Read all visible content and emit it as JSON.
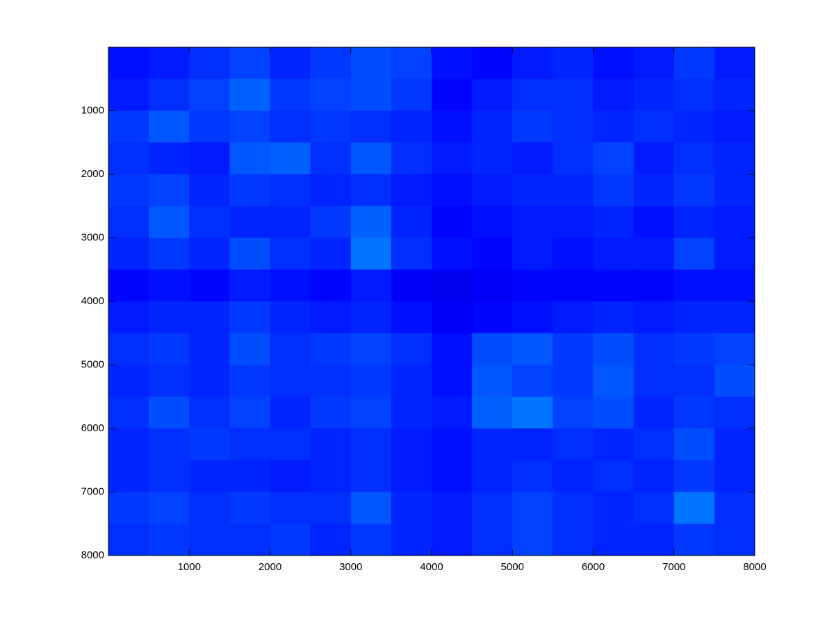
{
  "chart_data": {
    "type": "heatmap",
    "colormap": "jet",
    "clim": [
      0,
      1
    ],
    "xlim": [
      0,
      8000
    ],
    "ylim": [
      0,
      8000
    ],
    "y_reversed": true,
    "xticks": [
      1000,
      2000,
      3000,
      4000,
      5000,
      6000,
      7000,
      8000
    ],
    "yticks": [
      1000,
      2000,
      3000,
      4000,
      5000,
      6000,
      7000,
      8000
    ],
    "values": [
      [
        0.14,
        0.15,
        0.17,
        0.19,
        0.16,
        0.18,
        0.2,
        0.19,
        0.14,
        0.13,
        0.15,
        0.16,
        0.14,
        0.15,
        0.18,
        0.15
      ],
      [
        0.15,
        0.17,
        0.19,
        0.22,
        0.18,
        0.19,
        0.2,
        0.18,
        0.13,
        0.15,
        0.17,
        0.17,
        0.15,
        0.16,
        0.17,
        0.16
      ],
      [
        0.18,
        0.21,
        0.18,
        0.19,
        0.17,
        0.18,
        0.17,
        0.16,
        0.14,
        0.16,
        0.18,
        0.17,
        0.16,
        0.17,
        0.16,
        0.15
      ],
      [
        0.17,
        0.16,
        0.15,
        0.21,
        0.22,
        0.17,
        0.21,
        0.17,
        0.15,
        0.16,
        0.15,
        0.17,
        0.19,
        0.15,
        0.17,
        0.16
      ],
      [
        0.18,
        0.19,
        0.16,
        0.18,
        0.17,
        0.16,
        0.17,
        0.15,
        0.14,
        0.15,
        0.16,
        0.16,
        0.18,
        0.16,
        0.18,
        0.16
      ],
      [
        0.17,
        0.21,
        0.17,
        0.16,
        0.16,
        0.18,
        0.22,
        0.16,
        0.13,
        0.14,
        0.15,
        0.15,
        0.16,
        0.14,
        0.16,
        0.15
      ],
      [
        0.16,
        0.18,
        0.16,
        0.2,
        0.17,
        0.16,
        0.24,
        0.17,
        0.14,
        0.13,
        0.15,
        0.14,
        0.15,
        0.15,
        0.19,
        0.15
      ],
      [
        0.13,
        0.14,
        0.13,
        0.15,
        0.14,
        0.13,
        0.15,
        0.12,
        0.11,
        0.12,
        0.13,
        0.13,
        0.13,
        0.13,
        0.14,
        0.14
      ],
      [
        0.15,
        0.16,
        0.16,
        0.18,
        0.16,
        0.15,
        0.16,
        0.14,
        0.12,
        0.13,
        0.14,
        0.15,
        0.16,
        0.15,
        0.16,
        0.16
      ],
      [
        0.17,
        0.18,
        0.16,
        0.2,
        0.17,
        0.18,
        0.19,
        0.17,
        0.14,
        0.2,
        0.21,
        0.18,
        0.2,
        0.17,
        0.18,
        0.19
      ],
      [
        0.16,
        0.17,
        0.16,
        0.18,
        0.17,
        0.17,
        0.18,
        0.16,
        0.14,
        0.21,
        0.19,
        0.18,
        0.21,
        0.17,
        0.17,
        0.2
      ],
      [
        0.17,
        0.2,
        0.17,
        0.19,
        0.16,
        0.18,
        0.19,
        0.16,
        0.15,
        0.22,
        0.24,
        0.19,
        0.2,
        0.16,
        0.18,
        0.17
      ],
      [
        0.16,
        0.17,
        0.18,
        0.17,
        0.17,
        0.16,
        0.17,
        0.15,
        0.14,
        0.16,
        0.16,
        0.17,
        0.16,
        0.17,
        0.2,
        0.16
      ],
      [
        0.16,
        0.17,
        0.16,
        0.16,
        0.15,
        0.16,
        0.17,
        0.15,
        0.14,
        0.16,
        0.17,
        0.16,
        0.17,
        0.16,
        0.18,
        0.16
      ],
      [
        0.18,
        0.19,
        0.17,
        0.18,
        0.17,
        0.17,
        0.21,
        0.16,
        0.15,
        0.17,
        0.19,
        0.17,
        0.16,
        0.17,
        0.24,
        0.17
      ],
      [
        0.17,
        0.18,
        0.17,
        0.17,
        0.18,
        0.16,
        0.18,
        0.16,
        0.15,
        0.17,
        0.19,
        0.17,
        0.16,
        0.16,
        0.18,
        0.17
      ]
    ]
  }
}
